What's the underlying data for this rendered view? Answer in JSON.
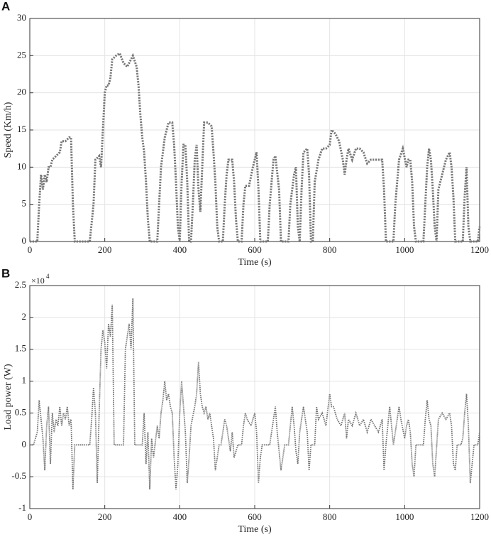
{
  "chart_data": [
    {
      "type": "line",
      "panel_label": "A",
      "xlabel": "Time (s)",
      "ylabel": "Speed (Km/h)",
      "xlim": [
        0,
        1200
      ],
      "xticks": [
        0,
        200,
        400,
        600,
        800,
        1000,
        1200
      ],
      "ylim": [
        0,
        30
      ],
      "yticks": [
        0,
        5,
        10,
        15,
        20,
        25,
        30
      ],
      "grid": true,
      "line_style": "dotted",
      "x": [
        0,
        10,
        20,
        25,
        30,
        35,
        40,
        45,
        50,
        55,
        60,
        70,
        80,
        85,
        95,
        105,
        110,
        115,
        120,
        130,
        140,
        150,
        160,
        170,
        175,
        185,
        190,
        195,
        200,
        205,
        210,
        215,
        220,
        230,
        240,
        250,
        260,
        270,
        275,
        285,
        290,
        295,
        300,
        305,
        310,
        315,
        320,
        330,
        340,
        345,
        350,
        360,
        370,
        380,
        385,
        390,
        395,
        400,
        405,
        410,
        415,
        420,
        425,
        430,
        435,
        440,
        445,
        450,
        455,
        460,
        465,
        475,
        485,
        490,
        495,
        500,
        505,
        515,
        520,
        525,
        530,
        540,
        545,
        550,
        555,
        565,
        570,
        575,
        585,
        595,
        605,
        610,
        615,
        625,
        635,
        640,
        650,
        655,
        665,
        670,
        680,
        690,
        695,
        705,
        710,
        715,
        720,
        725,
        730,
        740,
        745,
        750,
        755,
        760,
        770,
        780,
        790,
        800,
        805,
        815,
        825,
        835,
        840,
        845,
        850,
        860,
        870,
        880,
        890,
        900,
        910,
        920,
        930,
        940,
        945,
        950,
        960,
        970,
        975,
        985,
        995,
        1005,
        1010,
        1015,
        1020,
        1025,
        1030,
        1040,
        1050,
        1055,
        1060,
        1065,
        1070,
        1075,
        1080,
        1085,
        1090,
        1100,
        1110,
        1120,
        1125,
        1130,
        1135,
        1145,
        1155,
        1160,
        1165,
        1170,
        1175,
        1185,
        1195,
        1200
      ],
      "series": [
        {
          "color": "#777777",
          "values": [
            0,
            0,
            0,
            5,
            9,
            7,
            9,
            8,
            10,
            10,
            11,
            11.5,
            12,
            13.5,
            13.5,
            14,
            14,
            5,
            0,
            0,
            0,
            0,
            0,
            5,
            11,
            11.5,
            10,
            15,
            20,
            21,
            21,
            22,
            24.5,
            25,
            25.3,
            24,
            23.5,
            24.5,
            25,
            23.5,
            21,
            17,
            14,
            12,
            8,
            3,
            0,
            0,
            0,
            5,
            10,
            14,
            16,
            16,
            13,
            8,
            2,
            0,
            8,
            13,
            13,
            8,
            0,
            0,
            5,
            11,
            13,
            7,
            4,
            10,
            16,
            16,
            15.5,
            12,
            8,
            2,
            0,
            0,
            5,
            9,
            11,
            11,
            8,
            3,
            0,
            0,
            5,
            7.5,
            7.5,
            10,
            12,
            7,
            0,
            0,
            0,
            5,
            11,
            11.5,
            7,
            0,
            0,
            0,
            5,
            9,
            10,
            2,
            0,
            7,
            12,
            12.5,
            9,
            0,
            0,
            8,
            11,
            12.5,
            12.5,
            13,
            15,
            14.5,
            13.5,
            11,
            9,
            11,
            12.5,
            11,
            12.5,
            12.5,
            12,
            10.5,
            11,
            11,
            11,
            11,
            7,
            0,
            0,
            0,
            5,
            11,
            12.5,
            10,
            11,
            11,
            8,
            2,
            0,
            0,
            0,
            5,
            10,
            12.5,
            11,
            7,
            2,
            0,
            7,
            9,
            11,
            12,
            10,
            6,
            0,
            0,
            0,
            6,
            10,
            2,
            0,
            0,
            0,
            2
          ]
        }
      ]
    },
    {
      "type": "line",
      "panel_label": "B",
      "xlabel": "Time (s)",
      "ylabel": "Load power (W)",
      "y_multiplier": "×10",
      "y_multiplier_exponent": 4,
      "xlim": [
        0,
        1200
      ],
      "xticks": [
        0,
        200,
        400,
        600,
        800,
        1000,
        1200
      ],
      "ylim": [
        -1,
        2.5
      ],
      "yticks": [
        -1,
        -0.5,
        0,
        0.5,
        1,
        1.5,
        2,
        2.5
      ],
      "grid": true,
      "line_style": "dotted",
      "x": [
        0,
        10,
        20,
        25,
        30,
        35,
        40,
        45,
        50,
        55,
        60,
        65,
        70,
        75,
        80,
        85,
        90,
        95,
        100,
        105,
        110,
        115,
        120,
        140,
        160,
        165,
        170,
        175,
        180,
        185,
        190,
        195,
        200,
        205,
        210,
        215,
        220,
        225,
        240,
        250,
        255,
        260,
        265,
        270,
        275,
        280,
        290,
        300,
        305,
        310,
        315,
        320,
        325,
        330,
        340,
        345,
        350,
        355,
        360,
        365,
        370,
        375,
        380,
        385,
        390,
        395,
        400,
        405,
        410,
        415,
        420,
        425,
        430,
        440,
        445,
        450,
        455,
        460,
        465,
        470,
        475,
        480,
        490,
        495,
        500,
        505,
        510,
        515,
        520,
        525,
        530,
        535,
        540,
        545,
        555,
        565,
        570,
        575,
        580,
        590,
        600,
        605,
        610,
        615,
        620,
        640,
        650,
        655,
        660,
        665,
        670,
        680,
        690,
        695,
        700,
        705,
        710,
        715,
        720,
        725,
        730,
        735,
        740,
        745,
        750,
        760,
        765,
        770,
        780,
        790,
        800,
        805,
        810,
        820,
        830,
        840,
        845,
        850,
        860,
        870,
        880,
        890,
        900,
        910,
        920,
        930,
        940,
        945,
        950,
        960,
        965,
        970,
        980,
        985,
        990,
        1000,
        1005,
        1010,
        1015,
        1020,
        1025,
        1030,
        1050,
        1055,
        1060,
        1065,
        1070,
        1075,
        1080,
        1090,
        1100,
        1110,
        1120,
        1125,
        1130,
        1135,
        1140,
        1150,
        1155,
        1160,
        1165,
        1170,
        1175,
        1180,
        1185,
        1195,
        1200
      ],
      "series": [
        {
          "color": "#777777",
          "values": [
            0,
            0,
            0.2,
            0.7,
            0.4,
            0.1,
            -0.4,
            0.3,
            0.6,
            -0.3,
            0.5,
            0.2,
            0.4,
            0.3,
            0.6,
            0.3,
            0.5,
            0.4,
            0.6,
            0.3,
            0.4,
            -0.7,
            0,
            0,
            0,
            0.4,
            0.9,
            0.5,
            -0.6,
            0.5,
            1.5,
            1.8,
            1.6,
            1.2,
            1.9,
            1.7,
            2.2,
            0,
            0,
            0,
            1.5,
            1.7,
            1.9,
            1.5,
            2.3,
            0,
            0,
            0,
            0.5,
            -0.3,
            0.2,
            -0.7,
            0.1,
            -0.2,
            0.3,
            0.1,
            0.5,
            0.7,
            1.0,
            0.7,
            0.8,
            0.6,
            0.5,
            -0.2,
            -0.7,
            -0.3,
            0.5,
            1.0,
            0.6,
            0.2,
            -0.6,
            -0.2,
            0.3,
            0.6,
            0.8,
            1.3,
            0.8,
            0.6,
            0.5,
            0.6,
            0.4,
            0.5,
            0.1,
            -0.4,
            -0.2,
            0,
            0,
            0.2,
            0.4,
            0.3,
            0.1,
            -0.1,
            0.2,
            -0.2,
            0,
            0,
            0.3,
            0.5,
            0.4,
            0.3,
            0.5,
            0.2,
            -0.6,
            -0.2,
            0,
            0,
            0.4,
            0.6,
            0.2,
            -0.1,
            -0.4,
            0,
            0,
            0.3,
            0.6,
            0.3,
            -0.1,
            -0.3,
            0.2,
            0.4,
            0.6,
            0.4,
            0.2,
            -0.4,
            0,
            0,
            0.6,
            0.4,
            0.5,
            0.3,
            0.8,
            0.6,
            0.6,
            0.4,
            0.3,
            0.5,
            0.1,
            0.4,
            0.3,
            0.5,
            0.3,
            0.4,
            0.2,
            0.4,
            0.3,
            0.2,
            0.4,
            -0.4,
            0,
            0.6,
            0.3,
            0,
            0.4,
            0.6,
            0.4,
            0.1,
            0.3,
            0.4,
            0.2,
            -0.3,
            -0.5,
            0,
            0,
            0.4,
            0.7,
            0.4,
            0.3,
            -0.3,
            -0.5,
            0.4,
            0.5,
            0.4,
            0.5,
            0.3,
            -0.3,
            -0.4,
            0,
            0,
            0.1,
            0.5,
            0.8,
            0.3,
            -0.6,
            -0.3,
            0,
            0,
            0.2
          ]
        }
      ]
    }
  ]
}
